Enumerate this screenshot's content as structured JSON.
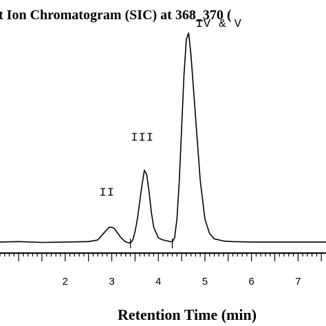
{
  "chart_data": {
    "type": "line",
    "title": "t Ion Chromatogram  (SIC) at 368_370 (",
    "xlabel": "Retention Time (min)",
    "ylabel": "",
    "xlim": [
      0.6,
      7.6
    ],
    "ylim": [
      0,
      1
    ],
    "grid": false,
    "x_ticks": [
      2,
      3,
      4,
      5,
      6,
      7
    ],
    "x_tick_labels": [
      "2",
      "3",
      "4",
      "5",
      "6",
      "7"
    ],
    "minor_tick_step": 0.1,
    "series": [
      {
        "x": [
          0.6,
          1.0,
          1.5,
          2.0,
          2.5,
          2.7,
          2.8,
          2.9,
          2.95,
          3.0,
          3.05,
          3.1,
          3.2,
          3.3,
          3.4,
          3.45,
          3.5,
          3.55,
          3.6,
          3.65,
          3.7,
          3.75,
          3.8,
          3.85,
          3.9,
          4.0,
          4.1,
          4.2,
          4.3,
          4.35,
          4.4,
          4.45,
          4.5,
          4.55,
          4.6,
          4.65,
          4.7,
          4.8,
          4.9,
          5.0,
          5.1,
          5.2,
          5.4,
          5.6,
          6.0,
          6.5,
          7.0,
          7.6
        ],
        "y": [
          0.01,
          0.012,
          0.008,
          0.01,
          0.012,
          0.02,
          0.045,
          0.07,
          0.08,
          0.08,
          0.075,
          0.06,
          0.03,
          0.01,
          0.005,
          0.02,
          0.06,
          0.12,
          0.2,
          0.28,
          0.35,
          0.33,
          0.25,
          0.15,
          0.08,
          0.03,
          0.02,
          0.015,
          0.01,
          0.03,
          0.12,
          0.3,
          0.55,
          0.8,
          0.97,
          1.0,
          0.9,
          0.6,
          0.3,
          0.12,
          0.05,
          0.025,
          0.015,
          0.012,
          0.01,
          0.01,
          0.01,
          0.01
        ]
      }
    ],
    "annotations": [
      {
        "text": "II",
        "x": 2.9,
        "y": 0.23
      },
      {
        "text": "III",
        "x": 3.66,
        "y": 0.49
      },
      {
        "text": "IV & V",
        "x": 5.3,
        "y": 1.03
      }
    ],
    "baseline_markers": [
      3.4,
      4.3
    ],
    "line_color": "#000000"
  }
}
